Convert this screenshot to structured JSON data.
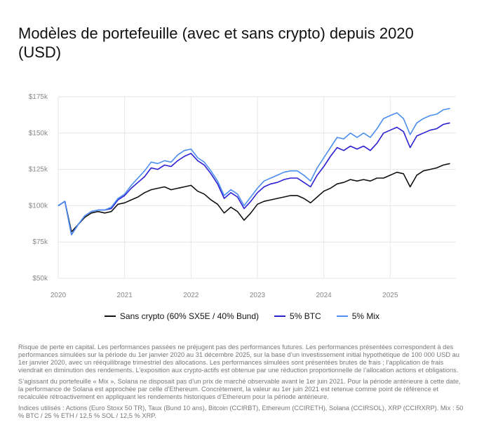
{
  "chart_data": {
    "type": "line",
    "title": "Modèles de portefeuille (avec et sans crypto) depuis 2020 (USD)",
    "x": [
      2020.0,
      2020.1,
      2020.2,
      2020.3,
      2020.4,
      2020.5,
      2020.6,
      2020.7,
      2020.8,
      2020.9,
      2021.0,
      2021.1,
      2021.2,
      2021.3,
      2021.4,
      2021.5,
      2021.6,
      2021.7,
      2021.8,
      2021.9,
      2022.0,
      2022.1,
      2022.2,
      2022.3,
      2022.4,
      2022.5,
      2022.6,
      2022.7,
      2022.8,
      2022.9,
      2023.0,
      2023.1,
      2023.2,
      2023.3,
      2023.4,
      2023.5,
      2023.6,
      2023.7,
      2023.8,
      2023.9,
      2024.0,
      2024.1,
      2024.2,
      2024.3,
      2024.4,
      2024.5,
      2024.6,
      2024.7,
      2024.8,
      2024.9,
      2025.0,
      2025.1,
      2025.2,
      2025.3,
      2025.4,
      2025.5,
      2025.6,
      2025.7,
      2025.8,
      2025.9
    ],
    "series": [
      {
        "name": "Sans crypto (60% SX5E / 40% Bund)",
        "color": "#111111",
        "values": [
          100,
          103,
          82,
          87,
          92,
          95,
          96,
          95,
          96,
          101,
          102,
          104,
          106,
          109,
          111,
          112,
          113,
          111,
          112,
          113,
          114,
          110,
          108,
          104,
          101,
          95,
          99,
          96,
          90,
          95,
          101,
          103,
          104,
          105,
          106,
          107,
          107,
          105,
          102,
          106,
          110,
          112,
          115,
          116,
          118,
          117,
          118,
          117,
          119,
          119,
          121,
          123,
          122,
          113,
          121,
          124,
          125,
          126,
          128,
          129
        ]
      },
      {
        "name": "5% BTC",
        "color": "#2a1fd1",
        "values": [
          100,
          103,
          80,
          87,
          93,
          96,
          97,
          97,
          98,
          104,
          107,
          112,
          116,
          120,
          126,
          125,
          128,
          127,
          131,
          134,
          136,
          131,
          128,
          122,
          115,
          105,
          109,
          106,
          98,
          103,
          109,
          113,
          115,
          116,
          118,
          119,
          119,
          116,
          113,
          121,
          127,
          134,
          140,
          138,
          141,
          139,
          141,
          138,
          143,
          150,
          152,
          154,
          151,
          140,
          148,
          150,
          152,
          153,
          156,
          157
        ]
      },
      {
        "name": "5% Mix",
        "color": "#4a8ef0",
        "values": [
          100,
          103,
          80,
          87,
          93,
          96,
          97,
          97,
          99,
          105,
          108,
          114,
          119,
          124,
          130,
          129,
          131,
          130,
          135,
          138,
          139,
          133,
          130,
          124,
          117,
          107,
          111,
          108,
          100,
          106,
          112,
          117,
          119,
          121,
          123,
          124,
          124,
          121,
          117,
          126,
          133,
          140,
          147,
          146,
          150,
          147,
          150,
          147,
          153,
          160,
          162,
          164,
          160,
          149,
          157,
          160,
          162,
          163,
          166,
          167
        ]
      }
    ],
    "xlim": [
      2020,
      2025.99
    ],
    "xticks": [
      2020,
      2021,
      2022,
      2023,
      2024,
      2025
    ],
    "ylim": [
      50,
      175
    ],
    "yticks": [
      {
        "value": 50,
        "label": "$50k"
      },
      {
        "value": 75,
        "label": "$75k"
      },
      {
        "value": 100,
        "label": "$100k"
      },
      {
        "value": 125,
        "label": "$125k"
      },
      {
        "value": 150,
        "label": "$150k"
      },
      {
        "value": 175,
        "label": "$175k"
      }
    ],
    "grid": true
  },
  "notes": [
    "Risque de perte en capital. Les performances passées ne préjugent pas des performances futures. Les performances présentées correspondent à des performances simulées sur la période du 1er janvier 2020 au 31 décembre 2025, sur la base d’un investissement initial hypothétique de 100 000 USD au 1er janvier 2020, avec un rééquilibrage trimestriel des allocations. Les performances simulées sont présentées brutes de frais ; l’application de frais viendrait en diminution des rendements. L’exposition aux crypto-actifs est obtenue par une réduction proportionnelle de l’allocation actions et obligations.",
    "S’agissant du portefeuille « Mix », Solana ne disposait pas d’un prix de marché observable avant le 1er juin 2021. Pour la période antérieure à cette date, la performance de Solana est approchée par celle d’Ethereum. Concrètement, la valeur au 1er juin 2021 est retenue comme point de référence et recalculée rétroactivement en appliquant les rendements historiques d’Ethereum pour la période antérieure.",
    "Indices utilisés : Actions (Euro Stoxx 50 TR), Taux (Bund 10 ans), Bitcoin (CCIRBT), Ethereum (CCIRETH), Solana (CCIRSOL), XRP (CCIRXRP). Mix : 50 % BTC / 25 % ETH / 12,5 % SOL / 12,5 % XRP."
  ]
}
